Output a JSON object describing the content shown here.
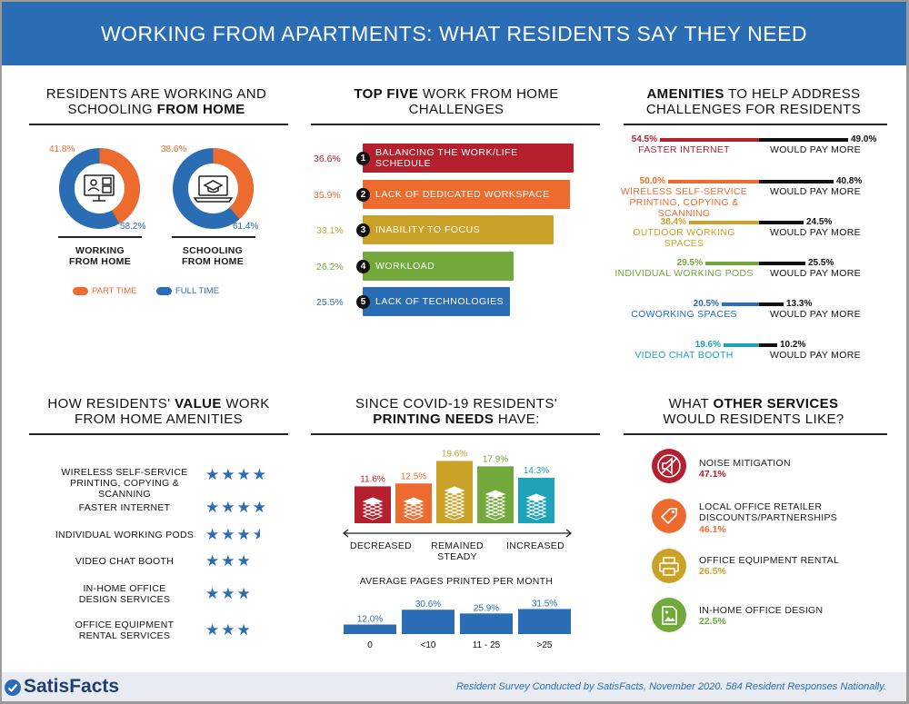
{
  "banner": {
    "title": "WORKING FROM APARTMENTS: WHAT RESIDENTS SAY THEY NEED"
  },
  "working": {
    "title_a": "RESIDENTS ARE WORKING AND",
    "title_b": "SCHOOLING ",
    "title_bold": "FROM HOME",
    "donuts": [
      {
        "label_1": "WORKING",
        "label_2": "FROM HOME",
        "part_time": "41.8%",
        "full_time": "58.2%",
        "part_time_value": 41.8,
        "icon": "video-call-icon"
      },
      {
        "label_1": "SCHOOLING",
        "label_2": "FROM HOME",
        "part_time": "38.6%",
        "full_time": "61.4%",
        "part_time_value": 38.6,
        "icon": "graduation-laptop-icon"
      }
    ],
    "legend_part": "PART TIME",
    "legend_full": "FULL TIME",
    "color_part": "#ee6b2f",
    "color_full": "#2a6db5"
  },
  "challenges": {
    "title_bold": "TOP FIVE",
    "title_rest": " WORK FROM HOME",
    "title_line2": "CHALLENGES",
    "items": [
      {
        "num": "1",
        "label": "BALANCING THE WORK/LIFE SCHEDULE",
        "pct": "36.6%",
        "value": 36.6,
        "color": "#b5202e"
      },
      {
        "num": "2",
        "label": "LACK OF DEDICATED WORKSPACE",
        "pct": "35.9%",
        "value": 35.9,
        "color": "#ee6b2f"
      },
      {
        "num": "3",
        "label": "INABILITY TO FOCUS",
        "pct": "33.1%",
        "value": 33.1,
        "color": "#c9a227"
      },
      {
        "num": "4",
        "label": "WORKLOAD",
        "pct": "26.2%",
        "value": 26.2,
        "color": "#72a83c"
      },
      {
        "num": "5",
        "label": "LACK OF TECHNOLOGIES",
        "pct": "25.5%",
        "value": 25.5,
        "color": "#2a6db5"
      }
    ]
  },
  "amenities": {
    "title_bold": "AMENITIES",
    "title_rest": " TO HELP ADDRESS",
    "title_line2": "CHALLENGES FOR RESIDENTS",
    "pay_more_label": "WOULD PAY MORE",
    "items": [
      {
        "name_1": "FASTER INTERNET",
        "name_2": "",
        "need": "54.5%",
        "need_value": 54.5,
        "pay": "49.0%",
        "pay_value": 49.0,
        "color": "#b5202e"
      },
      {
        "name_1": "WIRELESS SELF-SERVICE",
        "name_2": "PRINTING, COPYING & SCANNING",
        "need": "50.0%",
        "need_value": 50.0,
        "pay": "40.8%",
        "pay_value": 40.8,
        "color": "#ee6b2f"
      },
      {
        "name_1": "OUTDOOR WORKING SPACES",
        "name_2": "",
        "need": "38.4%",
        "need_value": 38.4,
        "pay": "24.5%",
        "pay_value": 24.5,
        "color": "#c9a227"
      },
      {
        "name_1": "INDIVIDUAL WORKING PODS",
        "name_2": "",
        "need": "29.5%",
        "need_value": 29.5,
        "pay": "25.5%",
        "pay_value": 25.5,
        "color": "#72a83c"
      },
      {
        "name_1": "COWORKING SPACES",
        "name_2": "",
        "need": "20.5%",
        "need_value": 20.5,
        "pay": "13.3%",
        "pay_value": 13.3,
        "color": "#2a6db5"
      },
      {
        "name_1": "VIDEO CHAT BOOTH",
        "name_2": "",
        "need": "19.6%",
        "need_value": 19.6,
        "pay": "10.2%",
        "pay_value": 10.2,
        "color": "#1ea3b8"
      }
    ]
  },
  "value": {
    "title_a": "HOW RESIDENTS' ",
    "title_bold": "VALUE",
    "title_c": " WORK",
    "title_line2": "FROM HOME AMENITIES",
    "items": [
      {
        "name_1": "WIRELESS SELF-SERVICE",
        "name_2": "PRINTING, COPYING & SCANNING",
        "stars": "★★★★",
        "rating": 4
      },
      {
        "name_1": "FASTER INTERNET",
        "name_2": "",
        "stars": "★★★★",
        "rating": 4
      },
      {
        "name_1": "INDIVIDUAL WORKING PODS",
        "name_2": "",
        "stars": "★★★",
        "rating": 3.5
      },
      {
        "name_1": "VIDEO CHAT BOOTH",
        "name_2": "",
        "stars": "★★★",
        "rating": 3
      },
      {
        "name_1": "IN-HOME OFFICE",
        "name_2": "DESIGN SERVICES",
        "stars": "★★★",
        "rating": 3
      },
      {
        "name_1": "OFFICE EQUIPMENT",
        "name_2": "RENTAL SERVICES",
        "stars": "★★★",
        "rating": 3
      }
    ]
  },
  "printing": {
    "title_line1": "SINCE COVID-19 RESIDENTS'",
    "title_bold": "PRINTING NEEDS",
    "title_rest": " HAVE:",
    "axis_left": "DECREASED",
    "axis_mid_1": "REMAINED",
    "axis_mid_2": "STEADY",
    "axis_right": "INCREASED",
    "pages_title": "AVERAGE PAGES PRINTED PER MONTH"
  },
  "services": {
    "title_a": "WHAT ",
    "title_bold": "OTHER SERVICES",
    "title_line2": "WOULD RESIDENTS LIKE?",
    "items": [
      {
        "name_1": "NOISE MITIGATION",
        "name_2": "",
        "pct": "47.1%",
        "color": "#b5202e",
        "icon": "muted-speaker-icon"
      },
      {
        "name_1": "LOCAL OFFICE RETAILER",
        "name_2": "DISCOUNTS/PARTNERSHIPS",
        "pct": "46.1%",
        "color": "#ee6b2f",
        "icon": "price-tag-icon"
      },
      {
        "name_1": "OFFICE EQUIPMENT RENTAL",
        "name_2": "",
        "pct": "26.5%",
        "color": "#c9a227",
        "icon": "printer-icon"
      },
      {
        "name_1": "IN-HOME OFFICE DESIGN",
        "name_2": "",
        "pct": "22.5%",
        "color": "#72a83c",
        "icon": "picture-frame-icon"
      }
    ]
  },
  "footer": {
    "brand": "SatisFacts",
    "note": "Resident Survey Conducted by SatisFacts, November 2020. 584 Resident Responses Nationally."
  },
  "chart_data": [
    {
      "type": "bar",
      "categories": [
        "DECREASED",
        "",
        "REMAINED STEADY",
        "",
        "INCREASED"
      ],
      "values": [
        11.6,
        12.5,
        19.6,
        17.9,
        14.3
      ],
      "value_labels": [
        "11.6%",
        "12.5%",
        "19.6%",
        "17.9%",
        "14.3%"
      ],
      "colors": [
        "#b5202e",
        "#ee6b2f",
        "#c9a227",
        "#72a83c",
        "#1ea3b8"
      ],
      "title": "SINCE COVID-19 RESIDENTS' PRINTING NEEDS HAVE:",
      "ylim": [
        0,
        20
      ]
    },
    {
      "type": "bar",
      "categories": [
        "0",
        "<10",
        "11 - 25",
        ">25"
      ],
      "values": [
        12.0,
        30.6,
        25.9,
        31.5
      ],
      "value_labels": [
        "12.0%",
        "30.6%",
        "25.9%",
        "31.5%"
      ],
      "color": "#2a6db5",
      "title": "AVERAGE PAGES PRINTED PER MONTH",
      "ylim": [
        0,
        32
      ]
    }
  ]
}
